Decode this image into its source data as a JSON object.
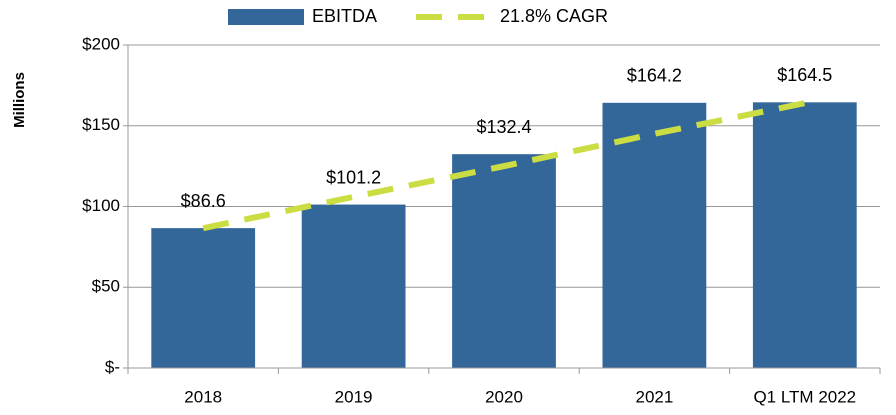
{
  "chart_data": {
    "type": "bar",
    "y_label": "Millions",
    "categories": [
      "2018",
      "2019",
      "2020",
      "2021",
      "Q1 LTM 2022"
    ],
    "series": [
      {
        "name": "EBITDA",
        "color": "#336699",
        "values": [
          86.6,
          101.2,
          132.4,
          164.2,
          164.5
        ],
        "value_labels": [
          "$86.6",
          "$101.2",
          "$132.4",
          "$164.2",
          "$164.5"
        ]
      },
      {
        "name": "21.8% CAGR",
        "type": "line",
        "dashed": true,
        "color": "#ccdd44",
        "values": [
          86.6,
          106,
          125,
          145,
          164
        ]
      }
    ],
    "ylim": [
      0,
      200
    ],
    "yticks": [
      {
        "value": 0,
        "label": "$-"
      },
      {
        "value": 50,
        "label": "$50"
      },
      {
        "value": 100,
        "label": "$100"
      },
      {
        "value": 150,
        "label": "$150"
      },
      {
        "value": 200,
        "label": "$200"
      }
    ],
    "grid": true,
    "legend": "top"
  }
}
